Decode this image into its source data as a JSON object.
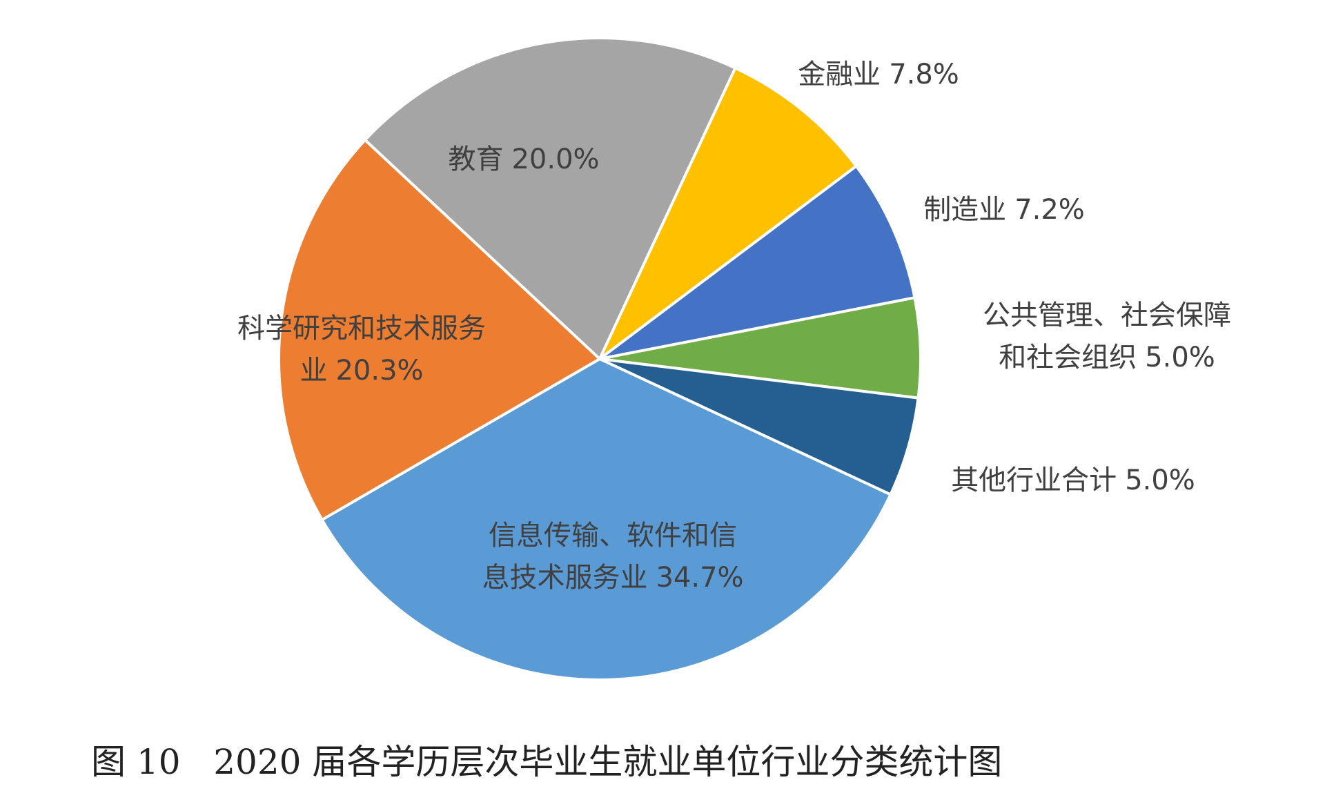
{
  "chart_data": {
    "type": "pie",
    "title": "图 10   2020 届各学历层次毕业生就业单位行业分类统计图",
    "categories": [
      "教育",
      "金融业",
      "制造业",
      "公共管理、社会保障和社会组织",
      "其他行业合计",
      "信息传输、软件和信息技术服务业",
      "科学研究和技术服务业"
    ],
    "values": [
      20.0,
      7.8,
      7.2,
      5.0,
      5.0,
      34.7,
      20.3
    ],
    "value_labels": [
      "20.0%",
      "7.8%",
      "7.2%",
      "5.0%",
      "5.0%",
      "34.7%",
      "20.3%"
    ],
    "colors": [
      "#a5a5a5",
      "#ffc000",
      "#4472c4",
      "#70ad47",
      "#255e91",
      "#5b9bd5",
      "#ed7d31"
    ]
  }
}
